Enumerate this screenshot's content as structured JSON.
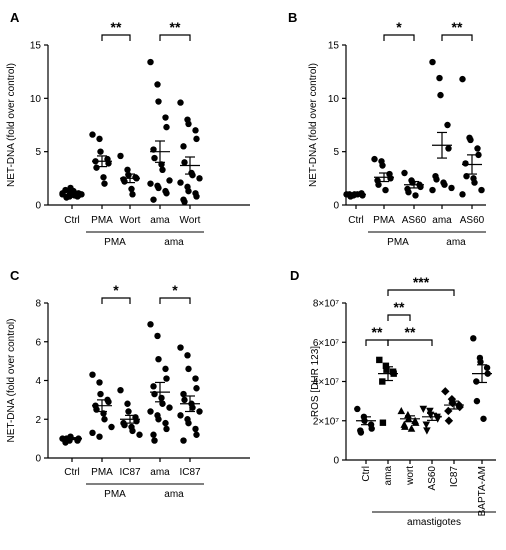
{
  "chart_data": [
    {
      "panel": "A",
      "type": "scatter",
      "ylabel": "NET-DNA (fold over control)",
      "ylim": [
        0,
        15
      ],
      "yticks": [
        "0",
        "5",
        "10",
        "15"
      ],
      "marker": "circle",
      "categories": [
        "Ctrl",
        "PMA",
        "Wort",
        "ama",
        "Wort"
      ],
      "groups": [
        {
          "label": "PMA",
          "from": 1,
          "to": 2
        },
        {
          "label": "ama",
          "from": 3,
          "to": 4
        }
      ],
      "significance": [
        {
          "from": 1,
          "to": 2,
          "label": "**"
        },
        {
          "from": 3,
          "to": 4,
          "label": "**"
        }
      ],
      "points": [
        [
          1.0,
          0.9,
          1.2,
          0.8,
          1.1,
          1.4,
          0.7,
          1.3,
          0.9,
          1.0,
          1.1,
          0.8,
          1.6,
          1.0,
          0.9
        ],
        [
          6.6,
          6.2,
          5.0,
          4.3,
          3.9,
          4.1,
          3.5,
          2.6,
          2.0
        ],
        [
          4.6,
          3.3,
          2.8,
          2.6,
          2.5,
          2.4,
          2.2,
          1.5,
          1.0
        ],
        [
          13.4,
          11.3,
          9.7,
          8.2,
          7.3,
          5.2,
          4.4,
          3.8,
          3.3,
          2.3,
          2.0,
          1.8,
          1.6,
          1.3,
          1.1,
          0.5
        ],
        [
          9.6,
          8.0,
          7.6,
          7.0,
          6.2,
          5.5,
          4.0,
          3.0,
          2.8,
          2.5,
          2.1,
          1.7,
          1.3,
          1.1,
          0.8,
          0.5,
          0.3
        ]
      ],
      "means": [
        1.0,
        4.1,
        2.5,
        5.0,
        3.7
      ],
      "sems": [
        0.1,
        0.5,
        0.4,
        1.0,
        0.8
      ]
    },
    {
      "panel": "B",
      "type": "scatter",
      "ylabel": "NET-DNA (fold over control)",
      "ylim": [
        0,
        15
      ],
      "yticks": [
        "0",
        "5",
        "10",
        "15"
      ],
      "marker": "circle",
      "categories": [
        "Ctrl",
        "PMA",
        "AS60",
        "ama",
        "AS60"
      ],
      "groups": [
        {
          "label": "PMA",
          "from": 1,
          "to": 2
        },
        {
          "label": "ama",
          "from": 3,
          "to": 4
        }
      ],
      "significance": [
        {
          "from": 1,
          "to": 2,
          "label": "*"
        },
        {
          "from": 3,
          "to": 4,
          "label": "**"
        }
      ],
      "points": [
        [
          1.0,
          0.9,
          1.0,
          1.1,
          0.9,
          1.0,
          0.8,
          1.0
        ],
        [
          4.3,
          4.1,
          3.7,
          2.9,
          2.5,
          2.3,
          1.9,
          1.4
        ],
        [
          3.0,
          2.3,
          2.1,
          1.9,
          1.7,
          1.5,
          1.2,
          0.9
        ],
        [
          13.4,
          11.9,
          10.3,
          7.5,
          5.3,
          2.7,
          2.4,
          2.1,
          1.9,
          1.6,
          1.4
        ],
        [
          11.8,
          6.3,
          6.1,
          5.3,
          4.7,
          3.9,
          2.7,
          2.5,
          2.1,
          1.4,
          1.0
        ]
      ],
      "means": [
        1.0,
        2.6,
        1.9,
        5.6,
        3.8
      ],
      "sems": [
        0.05,
        0.4,
        0.3,
        1.2,
        0.9
      ]
    },
    {
      "panel": "C",
      "type": "scatter",
      "ylabel": "NET-DNA (fold over control)",
      "ylim": [
        0,
        8
      ],
      "yticks": [
        "0",
        "2",
        "4",
        "6",
        "8"
      ],
      "marker": "circle",
      "categories": [
        "Ctrl",
        "PMA",
        "IC87",
        "ama",
        "IC87"
      ],
      "groups": [
        {
          "label": "PMA",
          "from": 1,
          "to": 2
        },
        {
          "label": "ama",
          "from": 3,
          "to": 4
        }
      ],
      "significance": [
        {
          "from": 1,
          "to": 2,
          "label": "*"
        },
        {
          "from": 3,
          "to": 4,
          "label": "*"
        }
      ],
      "points": [
        [
          1.0,
          0.9,
          1.1,
          0.9,
          1.0,
          0.8,
          1.0
        ],
        [
          4.3,
          3.9,
          3.3,
          3.0,
          2.9,
          2.7,
          2.5,
          2.3,
          2.0,
          1.6,
          1.3,
          1.1
        ],
        [
          3.5,
          2.8,
          2.4,
          2.1,
          1.9,
          1.8,
          1.7,
          1.6,
          1.4,
          1.2
        ],
        [
          6.9,
          6.3,
          5.1,
          4.6,
          4.1,
          3.7,
          3.3,
          3.1,
          2.8,
          2.6,
          2.4,
          2.2,
          2.0,
          1.8,
          1.5,
          1.2,
          0.9
        ],
        [
          5.7,
          5.3,
          4.6,
          4.1,
          3.6,
          3.3,
          3.0,
          2.8,
          2.6,
          2.4,
          2.2,
          2.0,
          1.8,
          1.5,
          1.2,
          0.9
        ]
      ],
      "means": [
        1.0,
        2.7,
        2.0,
        3.4,
        2.8
      ],
      "sems": [
        0.05,
        0.3,
        0.2,
        0.5,
        0.4
      ]
    },
    {
      "panel": "D",
      "type": "scatter",
      "ylabel": "ROS [DHR 123]",
      "ylim": [
        0,
        80000000
      ],
      "yticks": [
        "0",
        "2×10⁷",
        "4×10⁷",
        "6×10⁷",
        "8×10⁷"
      ],
      "categories": [
        "Ctrl",
        "ama",
        "wort",
        "AS60",
        "IC87",
        "BAPTA-AM"
      ],
      "markers": [
        "circle",
        "square",
        "triangle-up",
        "triangle-down",
        "diamond",
        "circle"
      ],
      "groups": [
        {
          "label": "amastigotes",
          "from": 1,
          "to": 5
        }
      ],
      "significance": [
        {
          "from": 0,
          "to": 1,
          "label": "**"
        },
        {
          "from": 1,
          "to": 2,
          "label": "**"
        },
        {
          "from": 1,
          "to": 3,
          "label": "**"
        },
        {
          "from": 1,
          "to": 4,
          "label": "***"
        }
      ],
      "points": [
        [
          26000000,
          22000000,
          20000000,
          18000000,
          16000000,
          15000000,
          14000000
        ],
        [
          51000000,
          48000000,
          46000000,
          45000000,
          44000000,
          40000000,
          19000000
        ],
        [
          25000000,
          23000000,
          21000000,
          20000000,
          19000000,
          18000000,
          17000000,
          16000000
        ],
        [
          26000000,
          25000000,
          23000000,
          22000000,
          21000000,
          18000000,
          15000000
        ],
        [
          35000000,
          31000000,
          29000000,
          28000000,
          27000000,
          25000000,
          20000000
        ],
        [
          62000000,
          52000000,
          50000000,
          47000000,
          44000000,
          40000000,
          30000000,
          21000000
        ]
      ],
      "means": [
        20000000,
        44000000,
        21000000,
        22000000,
        28000000,
        44000000
      ],
      "sems": [
        2000000,
        3500000,
        1500000,
        1800000,
        2000000,
        4500000
      ]
    }
  ]
}
